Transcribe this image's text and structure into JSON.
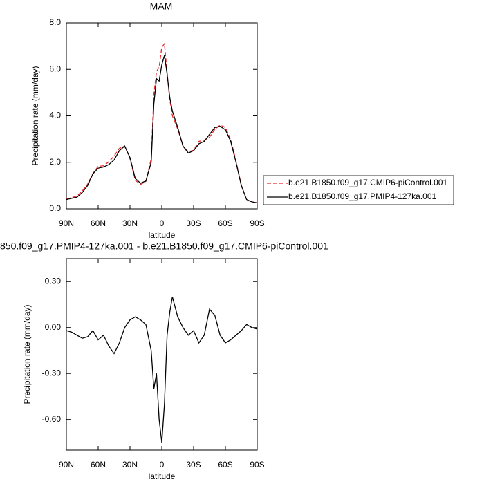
{
  "chart_data": [
    {
      "type": "line",
      "title": "MAM",
      "xlabel": "latitude",
      "ylabel": "Precipitation rate (mm/day)",
      "x": [
        90,
        85,
        80,
        75,
        70,
        65,
        60,
        55,
        50,
        45,
        40,
        35,
        30,
        25,
        20,
        15,
        10,
        7.5,
        5,
        2.5,
        0,
        -2.5,
        -5,
        -7.5,
        -10,
        -15,
        -20,
        -25,
        -30,
        -35,
        -40,
        -45,
        -50,
        -55,
        -60,
        -65,
        -70,
        -75,
        -80,
        -85,
        -90
      ],
      "series": [
        {
          "name": "b.e21.B1850.f09_g17.CMIP6-piControl.001",
          "color": "#e8262a",
          "line_style": "dashed",
          "values": [
            0.42,
            0.48,
            0.55,
            0.77,
            1.06,
            1.52,
            1.83,
            1.85,
            2.02,
            2.27,
            2.6,
            2.7,
            2.15,
            1.23,
            1.05,
            1.18,
            2.15,
            4.9,
            5.9,
            6.1,
            6.95,
            7.1,
            5.85,
            4.7,
            4.0,
            3.43,
            2.7,
            2.45,
            2.52,
            2.9,
            2.95,
            3.08,
            3.42,
            3.6,
            3.5,
            2.98,
            2.05,
            1.02,
            0.38,
            0.3,
            0.26
          ]
        },
        {
          "name": "b.e21.B1850.f09_g17.PMIP4-127ka.001",
          "color": "#000000",
          "line_style": "solid",
          "values": [
            0.4,
            0.45,
            0.5,
            0.7,
            1.0,
            1.5,
            1.75,
            1.8,
            1.9,
            2.1,
            2.5,
            2.7,
            2.2,
            1.3,
            1.1,
            1.2,
            2.0,
            4.5,
            5.6,
            5.5,
            6.2,
            6.6,
            5.8,
            4.8,
            4.2,
            3.5,
            2.7,
            2.4,
            2.5,
            2.8,
            2.9,
            3.2,
            3.5,
            3.55,
            3.4,
            2.9,
            2.0,
            1.0,
            0.4,
            0.3,
            0.25
          ]
        }
      ],
      "xlim": [
        90,
        -90
      ],
      "xticks": [
        {
          "value": 90,
          "label": "90N"
        },
        {
          "value": 60,
          "label": "60N"
        },
        {
          "value": 30,
          "label": "30N"
        },
        0,
        {
          "value": -30,
          "label": "30S"
        },
        {
          "value": -60,
          "label": "60S"
        },
        {
          "value": -90,
          "label": "90S"
        }
      ],
      "ylim": [
        0,
        8
      ],
      "yticks": [
        {
          "value": 0,
          "label": "0.0"
        },
        {
          "value": 2,
          "label": "2.0"
        },
        {
          "value": 4,
          "label": "4.0"
        },
        {
          "value": 6,
          "label": "6.0"
        },
        {
          "value": 8,
          "label": "8.0"
        }
      ],
      "legend": "right"
    },
    {
      "type": "line",
      "title": "850.f09_g17.PMIP4-127ka.001 - b.e21.B1850.f09_g17.CMIP6-piControl.001",
      "xlabel": "latitude",
      "ylabel": "Precipitation rate (mm/day)",
      "x": [
        90,
        85,
        80,
        75,
        70,
        65,
        60,
        55,
        50,
        45,
        40,
        35,
        30,
        25,
        20,
        15,
        10,
        7.5,
        5,
        2.5,
        0,
        -2.5,
        -5,
        -7.5,
        -10,
        -15,
        -20,
        -25,
        -30,
        -35,
        -40,
        -45,
        -50,
        -55,
        -60,
        -65,
        -70,
        -75,
        -80,
        -85,
        -90
      ],
      "color": "#000000",
      "values": [
        -0.02,
        -0.03,
        -0.05,
        -0.07,
        -0.06,
        -0.02,
        -0.08,
        -0.05,
        -0.12,
        -0.17,
        -0.1,
        0.0,
        0.05,
        0.07,
        0.05,
        0.02,
        -0.15,
        -0.4,
        -0.3,
        -0.6,
        -0.75,
        -0.5,
        -0.05,
        0.1,
        0.2,
        0.07,
        0.0,
        -0.05,
        -0.02,
        -0.1,
        -0.05,
        0.12,
        0.08,
        -0.05,
        -0.1,
        -0.08,
        -0.05,
        -0.02,
        0.02,
        0.0,
        -0.01
      ],
      "xlim": [
        90,
        -90
      ],
      "xticks": [
        {
          "value": 90,
          "label": "90N"
        },
        {
          "value": 60,
          "label": "60N"
        },
        {
          "value": 30,
          "label": "30N"
        },
        0,
        {
          "value": -30,
          "label": "30S"
        },
        {
          "value": -60,
          "label": "60S"
        },
        {
          "value": -90,
          "label": "90S"
        }
      ],
      "ylim": [
        -0.8,
        0.45
      ],
      "yticks": [
        {
          "value": 0.3,
          "label": "0.30"
        },
        {
          "value": 0,
          "label": "0.00"
        },
        {
          "value": -0.3,
          "label": "-0.30"
        },
        {
          "value": -0.6,
          "label": "-0.60"
        }
      ]
    }
  ]
}
